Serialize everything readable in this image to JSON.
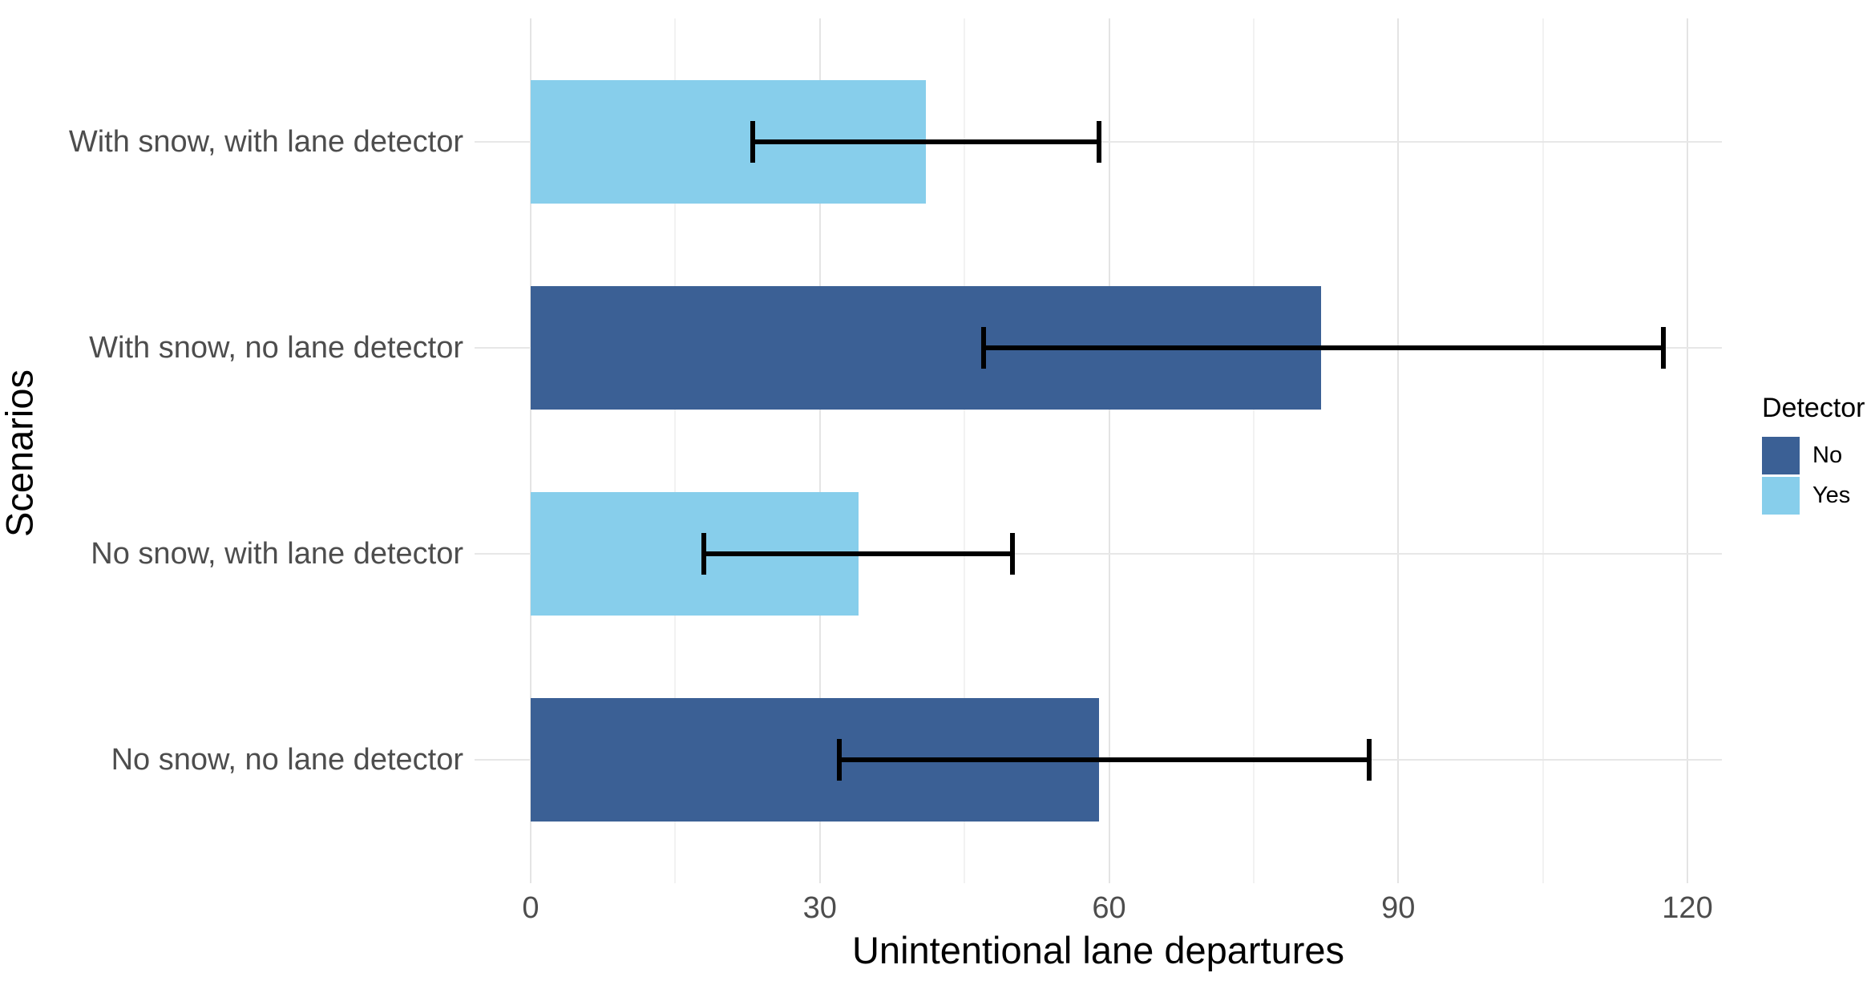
{
  "figure": {
    "background": "#ffffff"
  },
  "chart_data": {
    "type": "bar",
    "orientation": "horizontal",
    "title": "",
    "xlabel": "Unintentional lane departures",
    "ylabel": "Scenarios",
    "x_ticks": [
      0,
      30,
      60,
      90,
      120
    ],
    "x_minor_ticks": [
      15,
      45,
      75,
      105
    ],
    "xlim": [
      -6,
      123.5
    ],
    "grid": "vertical major+minor gridlines, horizontal major gridline per category, white background",
    "legend": {
      "title": "Detector",
      "position": "right",
      "entries": [
        {
          "label": "No",
          "color": "#3b6095"
        },
        {
          "label": "Yes",
          "color": "#87ceeb"
        }
      ]
    },
    "categories_top_to_bottom": [
      "With snow, with lane detector",
      "With snow, no lane detector",
      "No snow, with lane detector",
      "No snow, no lane detector"
    ],
    "series": [
      {
        "category": "With snow, with lane detector",
        "detector": "Yes",
        "value": 41,
        "ci_low": 23,
        "ci_high": 59,
        "color": "#87ceeb"
      },
      {
        "category": "With snow, no lane detector",
        "detector": "No",
        "value": 82,
        "ci_low": 47,
        "ci_high": 117.5,
        "color": "#3b6095"
      },
      {
        "category": "No snow, with lane detector",
        "detector": "Yes",
        "value": 34,
        "ci_low": 18,
        "ci_high": 50,
        "color": "#87ceeb"
      },
      {
        "category": "No snow, no lane detector",
        "detector": "No",
        "value": 59,
        "ci_low": 32,
        "ci_high": 87,
        "color": "#3b6095"
      }
    ],
    "colors": {
      "bar_no": "#3b6095",
      "bar_yes": "#87ceeb",
      "errorbar": "#000000",
      "grid_major": "#e4e4e4",
      "grid_minor": "#f2f2f2",
      "axis_text": "#4d4d4d",
      "titles": "#000000"
    }
  }
}
